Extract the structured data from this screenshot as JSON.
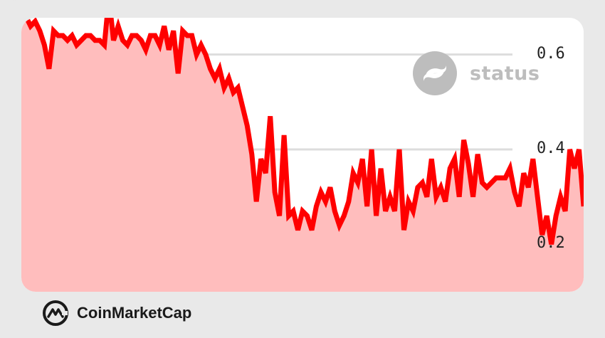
{
  "brand": {
    "name": "status",
    "icon": "status-logo-icon"
  },
  "footer": {
    "name": "CoinMarketCap",
    "icon": "coinmarketcap-logo-icon"
  },
  "colors": {
    "line": "#ff0000",
    "fill": "#ffbdbd",
    "grid": "#dddddd",
    "brand_gray": "#bdbdbd"
  },
  "chart_data": {
    "type": "area",
    "title": "",
    "xlabel": "",
    "ylabel": "",
    "ylim": [
      0.1,
      0.7
    ],
    "grid": true,
    "y_ticks": [
      {
        "value": 0.6,
        "label": "0.6"
      },
      {
        "value": 0.4,
        "label": "0.4"
      },
      {
        "value": 0.2,
        "label": "0.2"
      }
    ],
    "series": [
      {
        "values": [
          0.68,
          0.68,
          0.66,
          0.67,
          0.65,
          0.62,
          0.57,
          0.65,
          0.64,
          0.64,
          0.63,
          0.64,
          0.62,
          0.63,
          0.64,
          0.64,
          0.63,
          0.63,
          0.62,
          0.72,
          0.63,
          0.66,
          0.63,
          0.62,
          0.64,
          0.64,
          0.63,
          0.61,
          0.64,
          0.64,
          0.62,
          0.66,
          0.61,
          0.65,
          0.56,
          0.65,
          0.64,
          0.64,
          0.6,
          0.62,
          0.6,
          0.57,
          0.55,
          0.57,
          0.53,
          0.55,
          0.52,
          0.53,
          0.49,
          0.45,
          0.39,
          0.29,
          0.38,
          0.35,
          0.47,
          0.31,
          0.26,
          0.43,
          0.26,
          0.27,
          0.23,
          0.27,
          0.26,
          0.23,
          0.28,
          0.31,
          0.29,
          0.32,
          0.27,
          0.24,
          0.26,
          0.29,
          0.35,
          0.33,
          0.38,
          0.28,
          0.4,
          0.26,
          0.36,
          0.27,
          0.3,
          0.27,
          0.4,
          0.23,
          0.29,
          0.27,
          0.32,
          0.33,
          0.3,
          0.38,
          0.3,
          0.32,
          0.29,
          0.36,
          0.38,
          0.3,
          0.42,
          0.37,
          0.3,
          0.39,
          0.33,
          0.32,
          0.33,
          0.34,
          0.34,
          0.34,
          0.36,
          0.31,
          0.28,
          0.35,
          0.32,
          0.38,
          0.3,
          0.22,
          0.26,
          0.2,
          0.26,
          0.3,
          0.27,
          0.4,
          0.36,
          0.4,
          0.28
        ]
      }
    ]
  }
}
